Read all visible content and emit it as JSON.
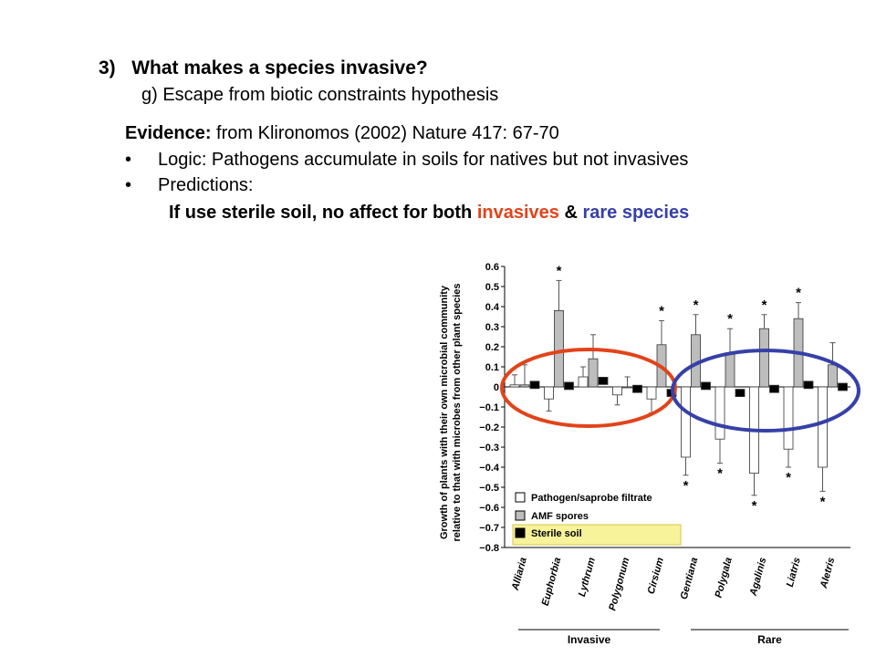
{
  "slide": {
    "heading_num": "3)",
    "heading": "What makes a species invasive?",
    "subheading": "g) Escape from biotic constraints hypothesis",
    "evidence_label": "Evidence:",
    "evidence_text": " from Klironomos (2002) Nature 417: 67-70",
    "bullets": [
      "Logic: Pathogens accumulate in soils for natives but not invasives",
      "Predictions:"
    ],
    "prediction": {
      "lead": "If use sterile soil, no affect for both ",
      "invasive": "invasives",
      "amp": " & ",
      "rare": "rare species"
    }
  },
  "colors": {
    "invasive": "#e2431a",
    "rare": "#3640a8",
    "legend_highlight": "#f6f39a",
    "amf_fill": "#bdbdbd",
    "sterile_fill": "#000000",
    "pathogen_fill": "#ffffff"
  },
  "chart_data": {
    "type": "bar",
    "ylabel_lines": [
      "Growth of plants with their own microbial community",
      "relative to that with microbes from other plant species"
    ],
    "ylim": [
      -0.8,
      0.6
    ],
    "yticks": [
      "0.6",
      "0.5",
      "0.4",
      "0.3",
      "0.2",
      "0.1",
      "0",
      "−0.1",
      "−0.2",
      "−0.3",
      "−0.4",
      "−0.5",
      "−0.6",
      "−0.7",
      "−0.8"
    ],
    "ytick_values": [
      0.6,
      0.5,
      0.4,
      0.3,
      0.2,
      0.1,
      0,
      -0.1,
      -0.2,
      -0.3,
      -0.4,
      -0.5,
      -0.6,
      -0.7,
      -0.8
    ],
    "categories": [
      "Alliaria",
      "Euphorbia",
      "Lythrum",
      "Polygonum",
      "Cirsium",
      "Gentiana",
      "Polygala",
      "Agalinis",
      "Liatris",
      "Aletris"
    ],
    "groups": [
      {
        "label": "Invasive",
        "categories": [
          "Alliaria",
          "Euphorbia",
          "Lythrum",
          "Polygonum",
          "Cirsium"
        ]
      },
      {
        "label": "Rare",
        "categories": [
          "Gentiana",
          "Polygala",
          "Agalinis",
          "Liatris",
          "Aletris"
        ]
      }
    ],
    "series": [
      {
        "name": "Pathogen/saprobe filtrate",
        "values": [
          0.01,
          -0.06,
          0.05,
          -0.04,
          -0.06,
          -0.35,
          -0.26,
          -0.43,
          -0.31,
          -0.4
        ],
        "err": [
          0.05,
          0.06,
          0.05,
          0.05,
          0.07,
          0.09,
          0.12,
          0.11,
          0.09,
          0.12
        ],
        "star": [
          false,
          false,
          false,
          false,
          false,
          true,
          true,
          true,
          true,
          true
        ]
      },
      {
        "name": "AMF spores",
        "values": [
          0.01,
          0.38,
          0.14,
          0.0,
          0.21,
          0.26,
          0.17,
          0.29,
          0.34,
          0.11
        ],
        "err": [
          0.1,
          0.15,
          0.12,
          0.05,
          0.12,
          0.1,
          0.12,
          0.07,
          0.08,
          0.11
        ],
        "star": [
          false,
          true,
          false,
          false,
          true,
          true,
          true,
          true,
          true,
          false
        ]
      },
      {
        "name": "Sterile soil",
        "values": [
          0.01,
          0.005,
          0.03,
          -0.01,
          -0.03,
          0.005,
          -0.03,
          -0.01,
          0.01,
          0.0
        ],
        "err": [
          0.02,
          0.02,
          0.02,
          0.02,
          0.02,
          0.02,
          0.02,
          0.02,
          0.02,
          0.02
        ],
        "star": [
          false,
          false,
          false,
          false,
          false,
          false,
          false,
          false,
          false,
          false
        ]
      }
    ],
    "star_symbol": "*",
    "legend_position": "bottom-left",
    "grid": false
  }
}
